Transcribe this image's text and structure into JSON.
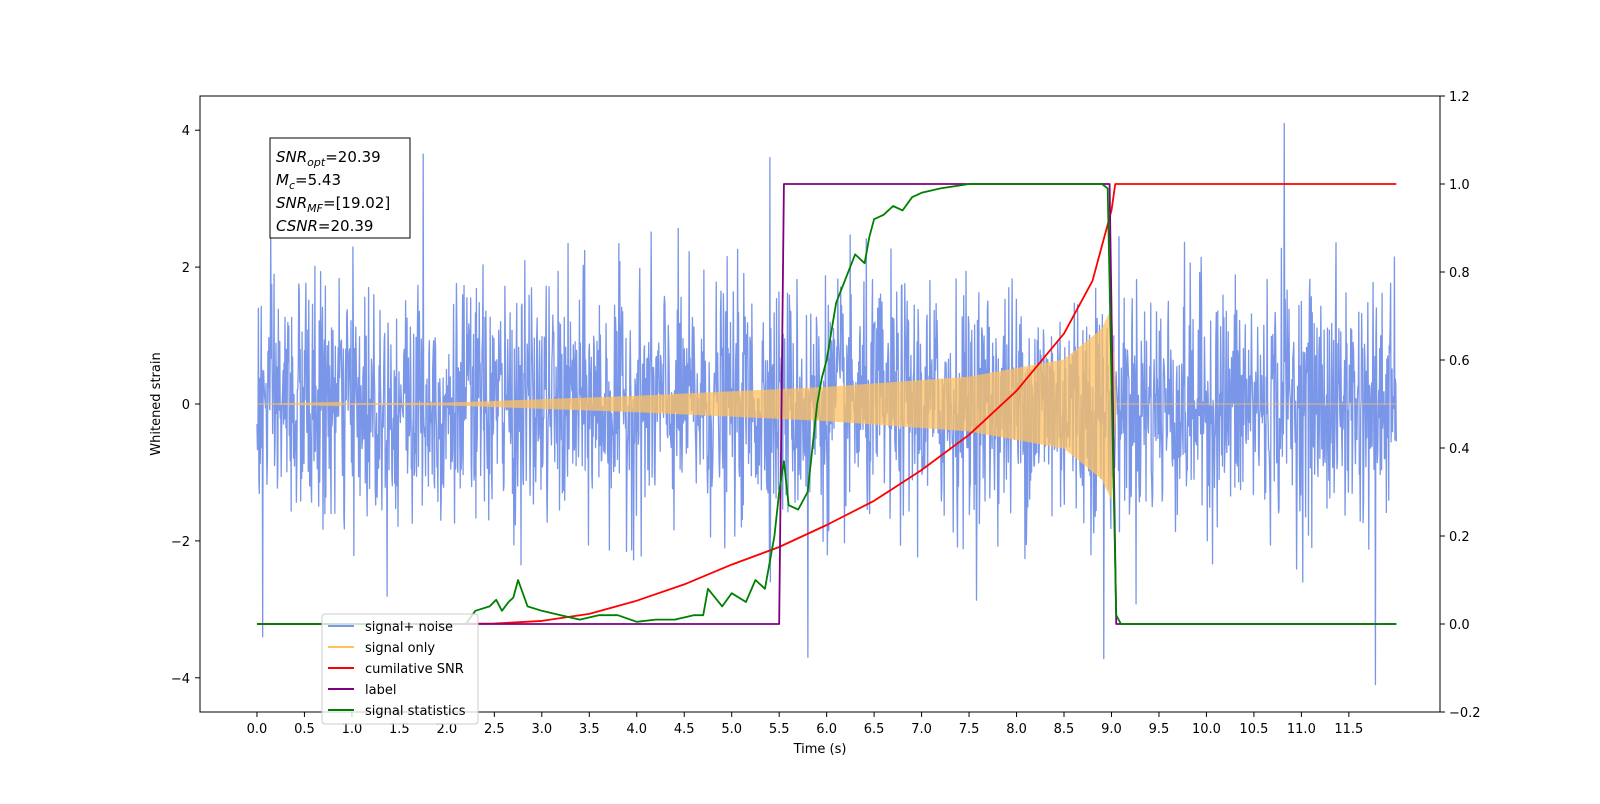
{
  "chart_data": {
    "type": "line",
    "title": "",
    "xlabel": "Time (s)",
    "ylabel": "Whitened strain",
    "y2label": "",
    "xlim": [
      -0.6,
      12.46
    ],
    "ylim": [
      -4.5,
      4.5
    ],
    "y2lim": [
      -0.2,
      1.2
    ],
    "x_ticks": [
      0.0,
      0.5,
      1.0,
      1.5,
      2.0,
      2.5,
      3.0,
      3.5,
      4.0,
      4.5,
      5.0,
      5.5,
      6.0,
      6.5,
      7.0,
      7.5,
      8.0,
      8.5,
      9.0,
      9.5,
      10.0,
      10.5,
      11.0,
      11.5
    ],
    "x_tick_labels": [
      "0.0",
      "0.5",
      "1.0",
      "1.5",
      "2.0",
      "2.5",
      "3.0",
      "3.5",
      "4.0",
      "4.5",
      "5.0",
      "5.5",
      "6.0",
      "6.5",
      "7.0",
      "7.5",
      "8.0",
      "8.5",
      "9.0",
      "9.5",
      "10.0",
      "10.5",
      "11.0",
      "11.5"
    ],
    "y_ticks": [
      -4,
      -2,
      0,
      2,
      4
    ],
    "y_tick_labels": [
      "−4",
      "−2",
      "0",
      "2",
      "4"
    ],
    "y2_ticks": [
      -0.2,
      0.0,
      0.2,
      0.4,
      0.6,
      0.8,
      1.0,
      1.2
    ],
    "y2_tick_labels": [
      "−0.2",
      "0.0",
      "0.2",
      "0.4",
      "0.6",
      "0.8",
      "1.0",
      "1.2"
    ],
    "grid": false,
    "legend_position": "lower-left",
    "annotation": {
      "lines": [
        {
          "main": "SNR",
          "sub": "opt",
          "rest": "=20.39"
        },
        {
          "main": "M",
          "sub": "c",
          "rest": "=5.43"
        },
        {
          "main": "SNR",
          "sub": "MF",
          "rest": "=[19.02]"
        },
        {
          "main": "CSNR",
          "sub": "",
          "rest": "=20.39"
        }
      ]
    },
    "series": [
      {
        "name": "signal+ noise",
        "color": "#7a96e8",
        "axis": "left",
        "kind": "noise",
        "x_range": [
          0.0,
          12.0
        ],
        "typical_abs": 1.9,
        "peak_max": 4.1,
        "peak_min": -4.1,
        "extremes": [
          {
            "x": 0.06,
            "y": -3.4
          },
          {
            "x": 1.75,
            "y": 3.65
          },
          {
            "x": 5.4,
            "y": 3.6
          },
          {
            "x": 5.8,
            "y": -3.7
          },
          {
            "x": 8.92,
            "y": -3.72
          },
          {
            "x": 10.82,
            "y": 4.1
          },
          {
            "x": 11.78,
            "y": -4.1
          }
        ]
      },
      {
        "name": "signal only",
        "color": "#ffc060",
        "axis": "left",
        "kind": "chirp",
        "x_range": [
          0.0,
          12.0
        ],
        "merger_x": 9.0,
        "peak_amplitude": 1.4,
        "envelope": [
          {
            "x": 0.0,
            "y": 0.0
          },
          {
            "x": 2.0,
            "y": 0.02
          },
          {
            "x": 4.0,
            "y": 0.12
          },
          {
            "x": 6.0,
            "y": 0.25
          },
          {
            "x": 7.5,
            "y": 0.4
          },
          {
            "x": 8.5,
            "y": 0.65
          },
          {
            "x": 8.9,
            "y": 1.1
          },
          {
            "x": 9.0,
            "y": 1.4
          },
          {
            "x": 9.05,
            "y": 0.0
          }
        ]
      },
      {
        "name": "cumilative SNR",
        "color": "#ff0000",
        "axis": "right",
        "points": [
          {
            "x": 0.0,
            "y": 0.0
          },
          {
            "x": 1.0,
            "y": 0.0
          },
          {
            "x": 2.0,
            "y": 0.0
          },
          {
            "x": 2.5,
            "y": 0.001
          },
          {
            "x": 3.0,
            "y": 0.007
          },
          {
            "x": 3.5,
            "y": 0.023
          },
          {
            "x": 4.0,
            "y": 0.053
          },
          {
            "x": 4.5,
            "y": 0.09
          },
          {
            "x": 5.0,
            "y": 0.135
          },
          {
            "x": 5.5,
            "y": 0.175
          },
          {
            "x": 6.0,
            "y": 0.225
          },
          {
            "x": 6.5,
            "y": 0.28
          },
          {
            "x": 7.0,
            "y": 0.35
          },
          {
            "x": 7.5,
            "y": 0.43
          },
          {
            "x": 8.0,
            "y": 0.53
          },
          {
            "x": 8.5,
            "y": 0.66
          },
          {
            "x": 8.8,
            "y": 0.78
          },
          {
            "x": 9.0,
            "y": 0.94
          },
          {
            "x": 9.04,
            "y": 1.0
          },
          {
            "x": 12.0,
            "y": 1.0
          }
        ]
      },
      {
        "name": "label",
        "color": "#800080",
        "axis": "right",
        "points": [
          {
            "x": 0.0,
            "y": 0.0
          },
          {
            "x": 5.5,
            "y": 0.0
          },
          {
            "x": 5.55,
            "y": 1.0
          },
          {
            "x": 8.98,
            "y": 1.0
          },
          {
            "x": 9.05,
            "y": 0.0
          },
          {
            "x": 12.0,
            "y": 0.0
          }
        ]
      },
      {
        "name": "signal statistics",
        "color": "#008000",
        "axis": "right",
        "points": [
          {
            "x": 0.0,
            "y": 0.0
          },
          {
            "x": 1.5,
            "y": 0.0
          },
          {
            "x": 2.2,
            "y": 0.0
          },
          {
            "x": 2.3,
            "y": 0.03
          },
          {
            "x": 2.45,
            "y": 0.04
          },
          {
            "x": 2.52,
            "y": 0.055
          },
          {
            "x": 2.58,
            "y": 0.03
          },
          {
            "x": 2.65,
            "y": 0.05
          },
          {
            "x": 2.7,
            "y": 0.06
          },
          {
            "x": 2.75,
            "y": 0.1
          },
          {
            "x": 2.85,
            "y": 0.04
          },
          {
            "x": 3.0,
            "y": 0.03
          },
          {
            "x": 3.2,
            "y": 0.02
          },
          {
            "x": 3.4,
            "y": 0.01
          },
          {
            "x": 3.6,
            "y": 0.02
          },
          {
            "x": 3.8,
            "y": 0.02
          },
          {
            "x": 4.0,
            "y": 0.005
          },
          {
            "x": 4.2,
            "y": 0.01
          },
          {
            "x": 4.4,
            "y": 0.01
          },
          {
            "x": 4.6,
            "y": 0.02
          },
          {
            "x": 4.7,
            "y": 0.02
          },
          {
            "x": 4.75,
            "y": 0.08
          },
          {
            "x": 4.9,
            "y": 0.04
          },
          {
            "x": 5.0,
            "y": 0.07
          },
          {
            "x": 5.15,
            "y": 0.05
          },
          {
            "x": 5.25,
            "y": 0.1
          },
          {
            "x": 5.35,
            "y": 0.08
          },
          {
            "x": 5.45,
            "y": 0.2
          },
          {
            "x": 5.5,
            "y": 0.3
          },
          {
            "x": 5.55,
            "y": 0.37
          },
          {
            "x": 5.6,
            "y": 0.27
          },
          {
            "x": 5.7,
            "y": 0.26
          },
          {
            "x": 5.8,
            "y": 0.3
          },
          {
            "x": 5.9,
            "y": 0.5
          },
          {
            "x": 5.95,
            "y": 0.56
          },
          {
            "x": 6.0,
            "y": 0.6
          },
          {
            "x": 6.1,
            "y": 0.73
          },
          {
            "x": 6.3,
            "y": 0.84
          },
          {
            "x": 6.4,
            "y": 0.82
          },
          {
            "x": 6.45,
            "y": 0.88
          },
          {
            "x": 6.5,
            "y": 0.92
          },
          {
            "x": 6.6,
            "y": 0.93
          },
          {
            "x": 6.7,
            "y": 0.95
          },
          {
            "x": 6.8,
            "y": 0.94
          },
          {
            "x": 6.9,
            "y": 0.97
          },
          {
            "x": 7.0,
            "y": 0.98
          },
          {
            "x": 7.2,
            "y": 0.99
          },
          {
            "x": 7.5,
            "y": 1.0
          },
          {
            "x": 8.9,
            "y": 1.0
          },
          {
            "x": 8.96,
            "y": 0.99
          },
          {
            "x": 9.05,
            "y": 0.02
          },
          {
            "x": 9.1,
            "y": 0.0
          },
          {
            "x": 12.0,
            "y": 0.0
          }
        ]
      }
    ],
    "legend": [
      {
        "label": "signal+ noise",
        "color": "#7a96e8"
      },
      {
        "label": "signal only",
        "color": "#ffc060"
      },
      {
        "label": "cumilative SNR",
        "color": "#ff0000"
      },
      {
        "label": "label",
        "color": "#800080"
      },
      {
        "label": "signal statistics",
        "color": "#008000"
      }
    ]
  }
}
